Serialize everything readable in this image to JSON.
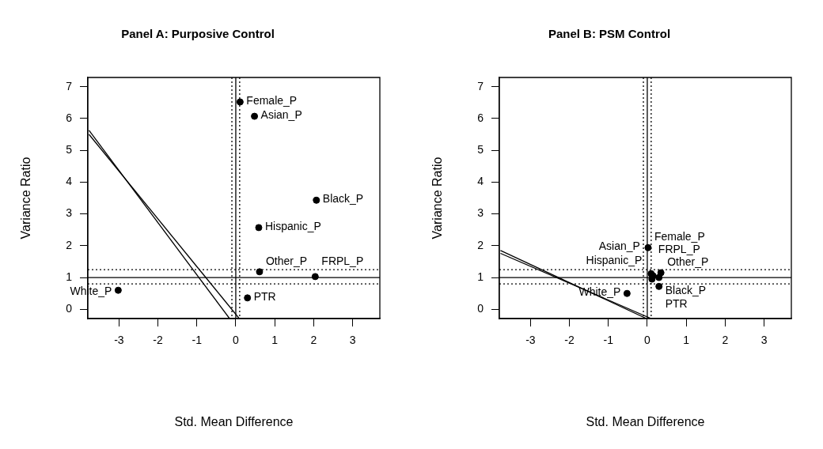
{
  "chart_data": [
    {
      "type": "scatter",
      "title": "Panel A: Purposive Control",
      "xlabel": "Std. Mean Difference",
      "ylabel": "Variance Ratio",
      "xlim": [
        -3.8,
        3.7
      ],
      "ylim": [
        -0.29,
        7.29
      ],
      "xticks": [
        -3,
        -2,
        -1,
        0,
        1,
        2,
        3
      ],
      "yticks": [
        0,
        1,
        2,
        3,
        4,
        5,
        6,
        7
      ],
      "series": [
        {
          "type": "scatter",
          "marker": "circle",
          "color": "#000000",
          "x": [
            0.11,
            0.48,
            2.07,
            0.59,
            0.61,
            2.04,
            -3.02,
            0.3
          ],
          "values": [
            6.52,
            6.07,
            3.43,
            2.57,
            1.18,
            1.03,
            0.6,
            0.36
          ]
        },
        {
          "type": "line",
          "color": "#000000",
          "x": [
            -3.77,
            -0.16
          ],
          "values": [
            5.63,
            -0.29
          ]
        },
        {
          "type": "line",
          "color": "#000000",
          "x": [
            -3.77,
            0.09
          ],
          "values": [
            5.5,
            -0.29
          ]
        }
      ],
      "ref_lines": [
        {
          "axis": "x",
          "value": 0,
          "line_style": "solid"
        },
        {
          "axis": "x",
          "value": -0.1,
          "line_style": "dotted"
        },
        {
          "axis": "x",
          "value": 0.1,
          "line_style": "dotted"
        },
        {
          "axis": "y",
          "value": 1,
          "line_style": "solid"
        },
        {
          "axis": "y",
          "value": 0.8,
          "line_style": "dotted"
        },
        {
          "axis": "y",
          "value": 1.25,
          "line_style": "dotted"
        }
      ],
      "annotations": [
        {
          "text": "Female_P",
          "x": 0.11,
          "y": 6.52
        },
        {
          "text": "Asian_P",
          "x": 0.48,
          "y": 6.07
        },
        {
          "text": "Black_P",
          "x": 2.07,
          "y": 3.43
        },
        {
          "text": "Hispanic_P",
          "x": 0.59,
          "y": 2.57
        },
        {
          "text": "Other_P",
          "x": 0.61,
          "y": 1.18
        },
        {
          "text": "FRPL_P",
          "x": 2.04,
          "y": 1.03
        },
        {
          "text": "White_P",
          "x": -3.02,
          "y": 0.6
        },
        {
          "text": "PTR",
          "x": 0.3,
          "y": 0.36
        }
      ]
    },
    {
      "type": "scatter",
      "title": "Panel B: PSM Control",
      "xlabel": "Std. Mean Difference",
      "ylabel": "Variance Ratio",
      "xlim": [
        -3.8,
        3.7
      ],
      "ylim": [
        -0.29,
        7.29
      ],
      "xticks": [
        -3,
        -2,
        -1,
        0,
        1,
        2,
        3
      ],
      "yticks": [
        0,
        1,
        2,
        3,
        4,
        5,
        6,
        7
      ],
      "series": [
        {
          "type": "scatter",
          "marker": "circle",
          "color": "#000000",
          "x": [
            0.02,
            0.1,
            0.3,
            0.15,
            0.35,
            0.12,
            -0.52,
            0.3
          ],
          "values": [
            1.94,
            1.12,
            1.0,
            1.05,
            1.15,
            0.95,
            0.5,
            0.72
          ]
        },
        {
          "type": "line",
          "color": "#000000",
          "x": [
            -3.77,
            -0.02
          ],
          "values": [
            1.85,
            -0.29
          ]
        },
        {
          "type": "line",
          "color": "#000000",
          "x": [
            -3.77,
            0.1
          ],
          "values": [
            1.76,
            -0.29
          ]
        }
      ],
      "ref_lines": [
        {
          "axis": "x",
          "value": 0,
          "line_style": "solid"
        },
        {
          "axis": "x",
          "value": -0.1,
          "line_style": "dotted"
        },
        {
          "axis": "x",
          "value": 0.1,
          "line_style": "dotted"
        },
        {
          "axis": "y",
          "value": 1,
          "line_style": "solid"
        },
        {
          "axis": "y",
          "value": 0.8,
          "line_style": "dotted"
        },
        {
          "axis": "y",
          "value": 1.25,
          "line_style": "dotted"
        }
      ],
      "annotations": [
        {
          "text": "Female_P",
          "x": 0.02,
          "y": 1.94
        },
        {
          "text": "Asian_P",
          "x": 0.1,
          "y": 1.12
        },
        {
          "text": "Black_P",
          "x": 0.3,
          "y": 1.0
        },
        {
          "text": "Hispanic_P",
          "x": 0.15,
          "y": 1.05
        },
        {
          "text": "Other_P",
          "x": 0.35,
          "y": 1.15
        },
        {
          "text": "FRPL_P",
          "x": 0.12,
          "y": 0.95
        },
        {
          "text": "White_P",
          "x": -0.52,
          "y": 0.5
        },
        {
          "text": "PTR",
          "x": 0.3,
          "y": 0.72
        }
      ]
    }
  ]
}
